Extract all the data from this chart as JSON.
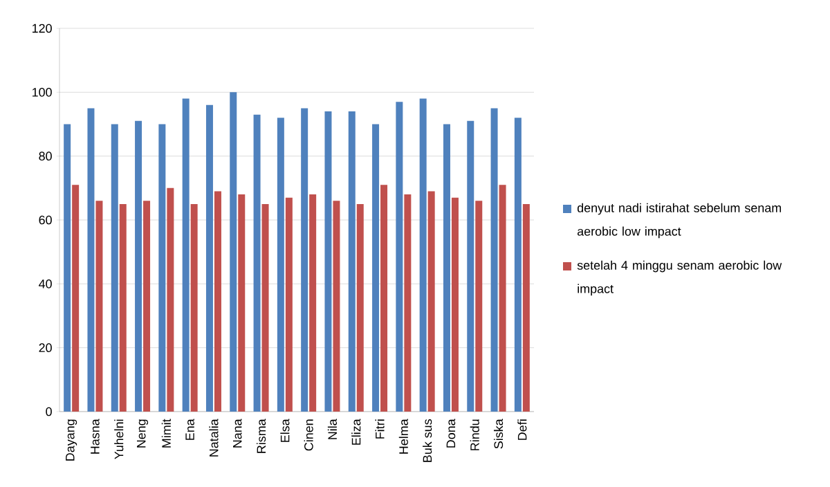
{
  "chart_data": {
    "type": "bar",
    "categories": [
      "Dayang",
      "Hasna",
      "Yuhelni",
      "Neng",
      "Mimit",
      "Ena",
      "Natalia",
      "Nana",
      "Risma",
      "Elsa",
      "Cinen",
      "Nila",
      "Eliza",
      "Fitri",
      "Helma",
      "Buk sus",
      "Dona",
      "Rindu",
      "Siska",
      "Defi"
    ],
    "series": [
      {
        "name": "denyut nadi istirahat sebelum senam aerobic low impact",
        "color": "#4f81bd",
        "values": [
          90,
          95,
          90,
          91,
          90,
          98,
          96,
          100,
          93,
          92,
          95,
          94,
          94,
          90,
          97,
          98,
          90,
          91,
          95,
          92
        ]
      },
      {
        "name": "setelah 4 minggu senam aerobic low impact",
        "color": "#c0504d",
        "values": [
          71,
          66,
          65,
          66,
          70,
          65,
          69,
          68,
          65,
          67,
          68,
          66,
          65,
          71,
          68,
          69,
          67,
          66,
          71,
          65
        ]
      }
    ],
    "ylim": [
      0,
      120
    ],
    "yticks": [
      0,
      20,
      40,
      60,
      80,
      100,
      120
    ],
    "grid": "y",
    "legend": "right"
  }
}
